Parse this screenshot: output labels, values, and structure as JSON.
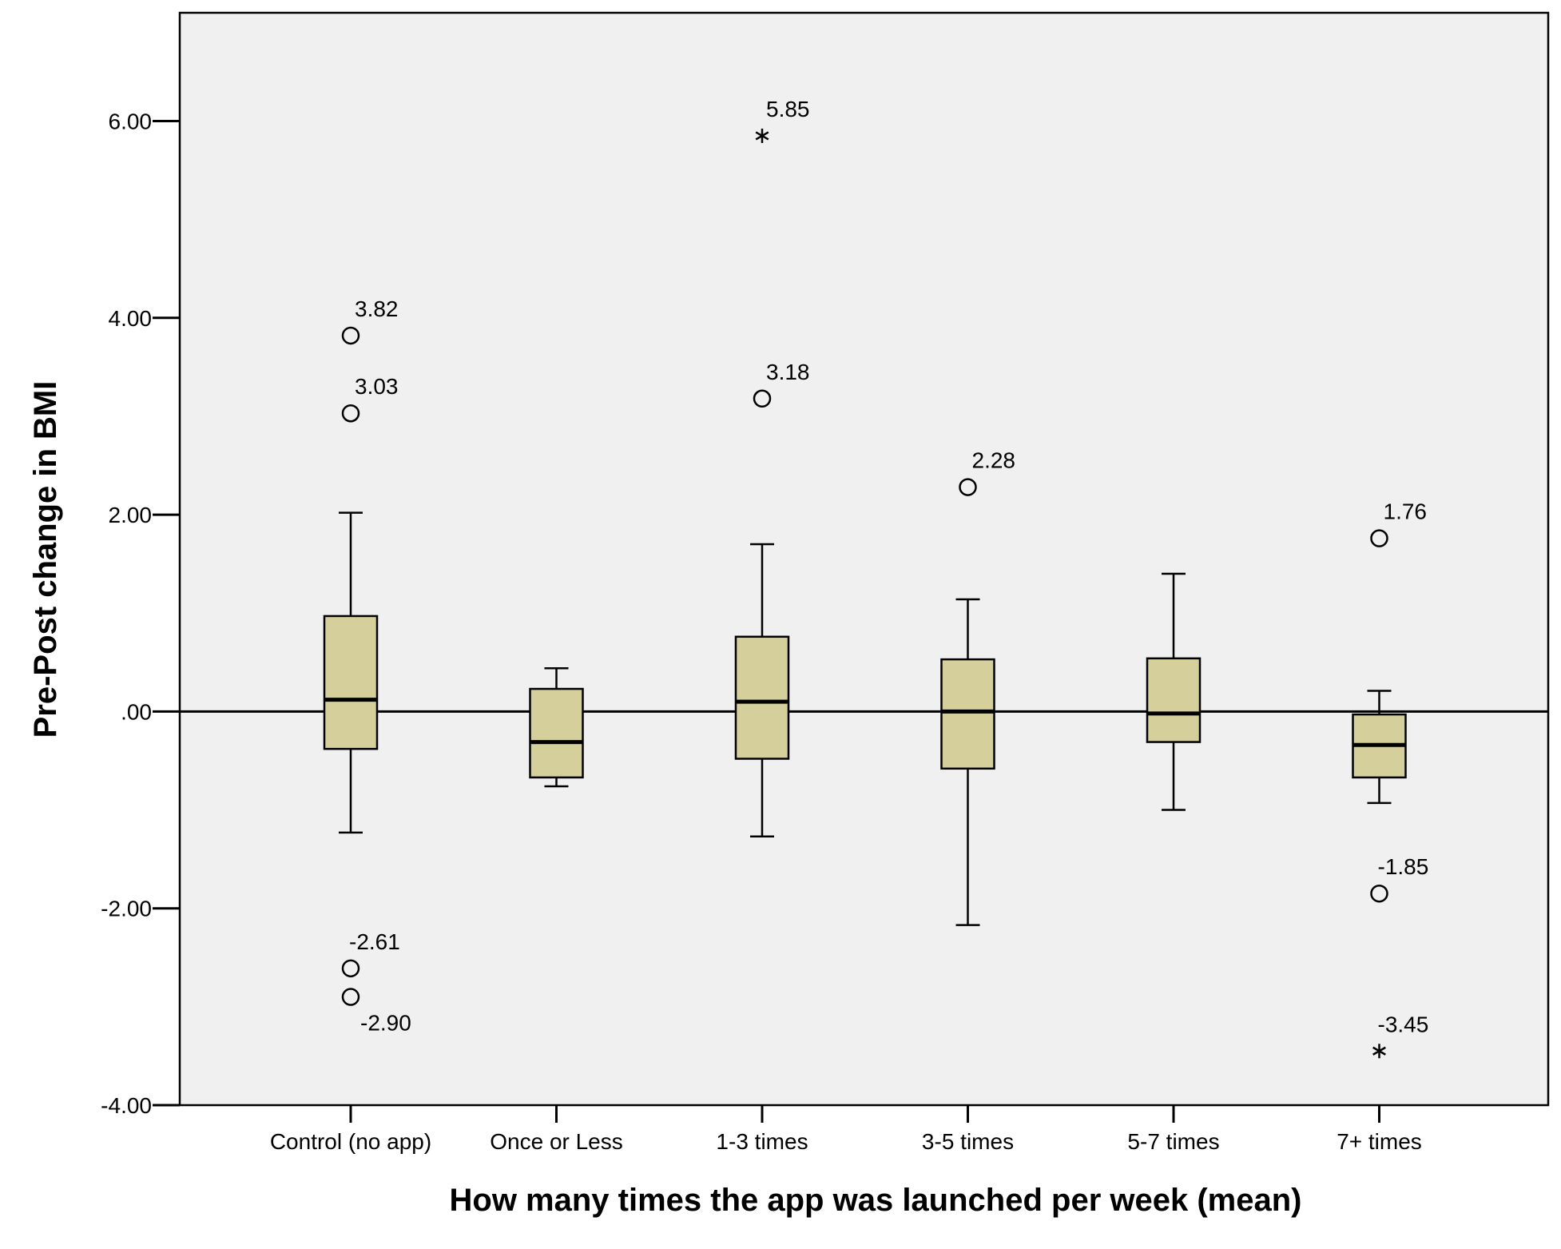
{
  "chart_data": {
    "type": "boxplot",
    "xlabel": "How many times the app was launched per week (mean)",
    "ylabel": "Pre-Post change in BMI",
    "ylim": [
      -4,
      7.1
    ],
    "yticks": [
      {
        "value": 6,
        "label": "6.00"
      },
      {
        "value": 4,
        "label": "4.00"
      },
      {
        "value": 2,
        "label": "2.00"
      },
      {
        "value": 0,
        "label": ".00"
      },
      {
        "value": -2,
        "label": "-2.00"
      },
      {
        "value": -4,
        "label": "-4.00"
      }
    ],
    "reference_line": 0,
    "grid": false,
    "colors": {
      "plot_bg": "#f0f0f0",
      "box_fill": "#d4cf9b",
      "stroke": "#000000"
    },
    "categories": [
      "Control (no app)",
      "Once or Less",
      "1-3 times",
      "3-5 times",
      "5-7 times",
      "7+ times"
    ],
    "boxes": [
      {
        "category": "Control (no app)",
        "whisker_low": -1.23,
        "q1": -0.38,
        "median": 0.12,
        "q3": 0.97,
        "whisker_high": 2.02,
        "outliers": [
          {
            "value": 3.82,
            "label": "3.82",
            "marker": "circle"
          },
          {
            "value": 3.03,
            "label": "3.03",
            "marker": "circle"
          },
          {
            "value": -2.61,
            "label": "-2.61",
            "marker": "circle"
          },
          {
            "value": -2.9,
            "label": "-2.90",
            "marker": "circle"
          }
        ]
      },
      {
        "category": "Once or Less",
        "whisker_low": -0.76,
        "q1": -0.67,
        "median": -0.31,
        "q3": 0.23,
        "whisker_high": 0.44,
        "outliers": []
      },
      {
        "category": "1-3 times",
        "whisker_low": -1.27,
        "q1": -0.48,
        "median": 0.1,
        "q3": 0.76,
        "whisker_high": 1.7,
        "outliers": [
          {
            "value": 5.85,
            "label": "5.85",
            "marker": "star"
          },
          {
            "value": 3.18,
            "label": "3.18",
            "marker": "circle"
          }
        ]
      },
      {
        "category": "3-5 times",
        "whisker_low": -2.17,
        "q1": -0.58,
        "median": 0.0,
        "q3": 0.53,
        "whisker_high": 1.14,
        "outliers": [
          {
            "value": 2.28,
            "label": "2.28",
            "marker": "circle"
          }
        ]
      },
      {
        "category": "5-7 times",
        "whisker_low": -1.0,
        "q1": -0.31,
        "median": -0.02,
        "q3": 0.54,
        "whisker_high": 1.4,
        "outliers": []
      },
      {
        "category": "7+ times",
        "whisker_low": -0.93,
        "q1": -0.67,
        "median": -0.34,
        "q3": -0.03,
        "whisker_high": 0.21,
        "outliers": [
          {
            "value": 1.76,
            "label": "1.76",
            "marker": "circle"
          },
          {
            "value": -1.85,
            "label": "-1.85",
            "marker": "circle"
          },
          {
            "value": -3.45,
            "label": "-3.45",
            "marker": "star"
          }
        ]
      }
    ]
  }
}
